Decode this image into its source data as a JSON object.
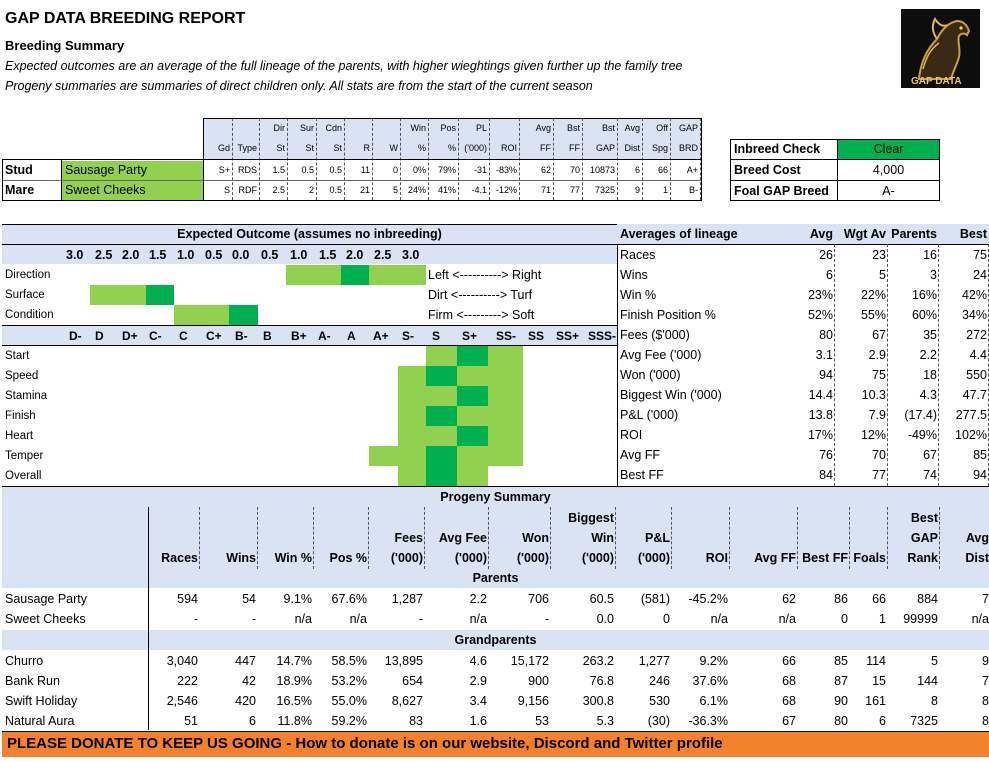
{
  "report": {
    "title": "GAP DATA BREEDING REPORT",
    "subtitle": "Breeding Summary",
    "note1": "Expected outcomes are an average of the full lineage of the parents, with higher wieghtings given further up the family tree",
    "note2": "Progeny summaries are summaries of direct children only. All stats are from the start of the current season",
    "logo_text": "GAP DATA"
  },
  "parents": {
    "headers_top": [
      "",
      "",
      "Dir",
      "Sur",
      "Cdn",
      "",
      "",
      "Win",
      "Pos",
      "PL",
      "",
      "Avg",
      "Bst",
      "Bst",
      "Avg",
      "Off",
      "GAP"
    ],
    "headers_bot": [
      "Gd",
      "Type",
      "St",
      "St",
      "St",
      "R",
      "W",
      "%",
      "%",
      "('000)",
      "ROI",
      "FF",
      "FF",
      "GAP",
      "Dist",
      "Spg",
      "BRD"
    ],
    "rows": [
      {
        "role": "Stud",
        "name": "Sausage Party",
        "vals": [
          "S+",
          "RDS",
          "1.5",
          "0.5",
          "0.5",
          "11",
          "0",
          "0%",
          "79%",
          "-31",
          "-83%",
          "62",
          "70",
          "10873",
          "6",
          "66",
          "A+"
        ]
      },
      {
        "role": "Mare",
        "name": "Sweet Cheeks",
        "vals": [
          "S",
          "RDF",
          "2.5",
          "2",
          "0.5",
          "21",
          "5",
          "24%",
          "41%",
          "-4.1",
          "-12%",
          "71",
          "77",
          "7325",
          "9",
          "1",
          "B-"
        ]
      }
    ]
  },
  "inbreed": {
    "label": "Inbreed Check",
    "value": "Clear",
    "fee_label": "Breed Cost",
    "fee_value": "4,000",
    "foal_label": "Foal GAP Breed",
    "foal_value": "A-"
  },
  "expected": {
    "title": "Expected Outcome (assumes no inbreeding)",
    "scale_top": [
      "3.0",
      "2.5",
      "2.0",
      "1.5",
      "1.0",
      "0.5",
      "0.0",
      "0.5",
      "1.0",
      "1.5",
      "2.0",
      "2.5",
      "3.0"
    ],
    "pref_rows": [
      {
        "label": "Direction",
        "legend": "Left <----------> Right"
      },
      {
        "label": "Surface",
        "legend": "Dirt <----------> Turf"
      },
      {
        "label": "Condition",
        "legend": "Firm <---------> Soft"
      }
    ],
    "grade_scale": [
      "D-",
      "D",
      "D+",
      "C-",
      "C",
      "C+",
      "B-",
      "B",
      "B+",
      "A-",
      "A",
      "A+",
      "S-",
      "S",
      "S+",
      "SS-",
      "SS",
      "SS+",
      "SSS-"
    ],
    "attr_rows": [
      "Start",
      "Speed",
      "Stamina",
      "Finish",
      "Heart",
      "Temper",
      "Overall"
    ]
  },
  "lineage": {
    "title": "Averages of lineage",
    "cols": [
      "Avg",
      "Wgt Av",
      "Parents",
      "Best"
    ],
    "rows": [
      {
        "label": "Races",
        "vals": [
          "26",
          "23",
          "16",
          "75"
        ]
      },
      {
        "label": "Wins",
        "vals": [
          "6",
          "5",
          "3",
          "24"
        ]
      },
      {
        "label": "Win %",
        "vals": [
          "23%",
          "22%",
          "16%",
          "42%"
        ]
      },
      {
        "label": "Finish Position %",
        "vals": [
          "52%",
          "55%",
          "60%",
          "34%"
        ]
      },
      {
        "label": "Fees ($'000)",
        "vals": [
          "80",
          "67",
          "35",
          "272"
        ]
      },
      {
        "label": "Avg Fee ('000)",
        "vals": [
          "3.1",
          "2.9",
          "2.2",
          "4.4"
        ]
      },
      {
        "label": "Won ('000)",
        "vals": [
          "94",
          "75",
          "18",
          "550"
        ]
      },
      {
        "label": "Biggest Win ('000)",
        "vals": [
          "14.4",
          "10.3",
          "4.3",
          "47.7"
        ]
      },
      {
        "label": "P&L ('000)",
        "vals": [
          "13.8",
          "7.9",
          "(17.4)",
          "277.5"
        ]
      },
      {
        "label": "ROI",
        "vals": [
          "17%",
          "12%",
          "-49%",
          "102%"
        ]
      },
      {
        "label": "Avg FF",
        "vals": [
          "76",
          "70",
          "67",
          "85"
        ]
      },
      {
        "label": "Best FF",
        "vals": [
          "84",
          "77",
          "74",
          "94"
        ]
      }
    ]
  },
  "progeny": {
    "title": "Progeny Summary",
    "h1": [
      "",
      "",
      "",
      "",
      "",
      "",
      "",
      "Biggest",
      "",
      "",
      "",
      "",
      "",
      "Best",
      ""
    ],
    "h2": [
      "",
      "",
      "",
      "",
      "Fees",
      "Avg Fee",
      "Won",
      "Win",
      "P&L",
      "",
      "",
      "",
      "",
      "GAP",
      "Avg"
    ],
    "h3": [
      "Races",
      "Wins",
      "Win %",
      "Pos %",
      "('000)",
      "('000)",
      "('000)",
      "('000)",
      "('000)",
      "ROI",
      "Avg FF",
      "Best FF",
      "Foals",
      "Rank",
      "Dist"
    ],
    "parents_label": "Parents",
    "parents": [
      {
        "name": "Sausage Party",
        "vals": [
          "594",
          "54",
          "9.1%",
          "67.6%",
          "1,287",
          "2.2",
          "706",
          "60.5",
          "(581)",
          "-45.2%",
          "62",
          "86",
          "66",
          "884",
          "7"
        ]
      },
      {
        "name": "Sweet Cheeks",
        "vals": [
          "-",
          "-",
          "n/a",
          "n/a",
          "-",
          "n/a",
          "-",
          "0.0",
          "0",
          "n/a",
          "n/a",
          "0",
          "1",
          "99999",
          "n/a"
        ]
      }
    ],
    "grand_label": "Grandparents",
    "grand": [
      {
        "name": "Churro",
        "vals": [
          "3,040",
          "447",
          "14.7%",
          "58.5%",
          "13,895",
          "4.6",
          "15,172",
          "263.2",
          "1,277",
          "9.2%",
          "66",
          "85",
          "114",
          "5",
          "9"
        ]
      },
      {
        "name": "Bank Run",
        "vals": [
          "222",
          "42",
          "18.9%",
          "53.2%",
          "654",
          "2.9",
          "900",
          "76.8",
          "246",
          "37.6%",
          "68",
          "87",
          "15",
          "144",
          "7"
        ]
      },
      {
        "name": "Swift Holiday",
        "vals": [
          "2,546",
          "420",
          "16.5%",
          "55.0%",
          "8,627",
          "3.4",
          "9,156",
          "300.8",
          "530",
          "6.1%",
          "68",
          "90",
          "161",
          "8",
          "8"
        ]
      },
      {
        "name": "Natural Aura",
        "vals": [
          "51",
          "6",
          "11.8%",
          "59.2%",
          "83",
          "1.6",
          "53",
          "5.3",
          "(30)",
          "-36.3%",
          "67",
          "80",
          "6",
          "7325",
          "8"
        ]
      }
    ]
  },
  "banner": "PLEASE DONATE TO KEEP US GOING - How to donate is on our website, Discord and Twitter profile"
}
